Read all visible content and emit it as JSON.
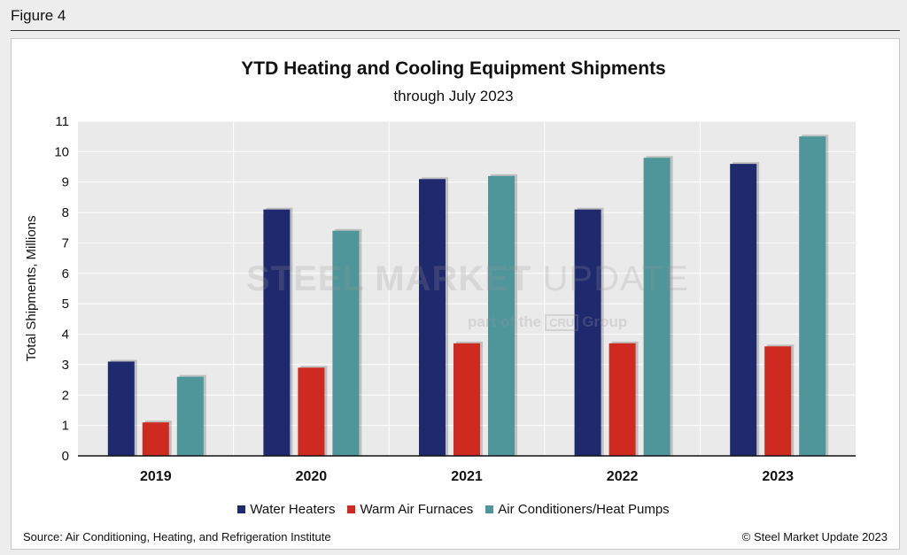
{
  "figure_label": "Figure 4",
  "source": "Source: Air Conditioning, Heating, and Refrigeration Institute",
  "copyright": "© Steel Market Update 2023",
  "watermark": {
    "name_bold": "STEEL MARKET",
    "name_light": "UPDATE",
    "tagline_pre": "part of the",
    "tagline_brand": "CRU",
    "tagline_post": "Group"
  },
  "colors": {
    "water_heaters": "#1f2a6e",
    "warm_air_furnaces": "#cf2a1f",
    "air_conditioners": "#4f969a",
    "plot_bg": "#eaeaea",
    "grid": "#ffffff"
  },
  "chart_data": {
    "type": "bar",
    "title": "YTD Heating and Cooling Equipment Shipments",
    "subtitle": "through July 2023",
    "xlabel": "",
    "ylabel": "Total Shipments, Millions",
    "ylim": [
      0,
      11
    ],
    "yticks": [
      0,
      1,
      2,
      3,
      4,
      5,
      6,
      7,
      8,
      9,
      10,
      11
    ],
    "categories": [
      "2019",
      "2020",
      "2021",
      "2022",
      "2023"
    ],
    "series": [
      {
        "name": "Water Heaters",
        "color": "#1f2a6e",
        "values": [
          3.1,
          8.1,
          9.1,
          8.1,
          9.6
        ]
      },
      {
        "name": "Warm Air Furnaces",
        "color": "#cf2a1f",
        "values": [
          1.1,
          2.9,
          3.7,
          3.7,
          3.6
        ]
      },
      {
        "name": "Air Conditioners/Heat Pumps",
        "color": "#4f969a",
        "values": [
          2.6,
          7.4,
          9.2,
          9.8,
          10.5
        ]
      }
    ],
    "legend_position": "bottom-center",
    "grid": true
  }
}
